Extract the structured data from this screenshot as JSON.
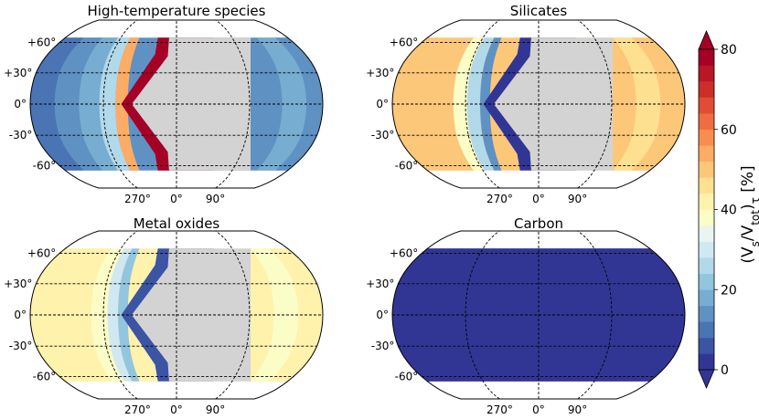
{
  "chart_data": {
    "type": "heatmap",
    "projection": "robinson",
    "colorbar": {
      "label_parts": [
        "(V",
        "s",
        "/V",
        "tot",
        ")",
        "τ",
        " [%]"
      ],
      "range": [
        0,
        80
      ],
      "ticks": [
        "0",
        "20",
        "40",
        "60",
        "80"
      ],
      "extend": "both",
      "levels": 20,
      "colors": [
        "#313695",
        "#3b54a4",
        "#4a74b4",
        "#5f91c3",
        "#77add1",
        "#92c5de",
        "#b2d9e9",
        "#d0e8f2",
        "#e9f5f0",
        "#fbfdc7",
        "#fff2ac",
        "#fee091",
        "#fdc779",
        "#fcac64",
        "#f88d51",
        "#ef6d41",
        "#e04d35",
        "#cc2f28",
        "#b71726",
        "#a50026"
      ],
      "under_color": "#313695",
      "over_color": "#a50026"
    },
    "lon_ticks": [
      "270°",
      "0°",
      "90°"
    ],
    "lat_ticks": [
      "+60°",
      "+30°",
      "0°",
      "-30°",
      "-60°"
    ],
    "lat_values": [
      60,
      30,
      0,
      -30,
      -60
    ],
    "lon_grid": [
      -90,
      0,
      90
    ],
    "panels": [
      {
        "title": "High-temperature species",
        "lon_bands": [
          {
            "from": -180,
            "to": -150,
            "value": 10
          },
          {
            "from": -150,
            "to": -120,
            "value": 12
          },
          {
            "from": -120,
            "to": -95,
            "value": 18
          },
          {
            "from": -95,
            "to": -75,
            "value": 24
          },
          {
            "from": -75,
            "to": -60,
            "value": 52
          },
          {
            "from": 130,
            "to": 160,
            "value": 18
          },
          {
            "from": 160,
            "to": 180,
            "value": 12
          }
        ],
        "nightside": {
          "edge_value": 80,
          "no_data": true
        },
        "base_value": 15
      },
      {
        "title": "Silicates",
        "lon_bands": [
          {
            "from": -180,
            "to": -105,
            "value": 48
          },
          {
            "from": -105,
            "to": -88,
            "value": 38
          },
          {
            "from": -88,
            "to": -72,
            "value": 25
          },
          {
            "from": -72,
            "to": -60,
            "value": 14
          },
          {
            "from": 120,
            "to": 150,
            "value": 44
          },
          {
            "from": 150,
            "to": 180,
            "value": 48
          }
        ],
        "nightside": {
          "edge_value": 2,
          "no_data": true
        },
        "base_value": 48
      },
      {
        "title": "Metal oxides",
        "lon_bands": [
          {
            "from": -180,
            "to": -105,
            "value": 40
          },
          {
            "from": -105,
            "to": -85,
            "value": 36
          },
          {
            "from": -85,
            "to": -72,
            "value": 30
          },
          {
            "from": -72,
            "to": -60,
            "value": 22
          },
          {
            "from": 120,
            "to": 150,
            "value": 36
          },
          {
            "from": 150,
            "to": 180,
            "value": 40
          }
        ],
        "nightside": {
          "edge_value": 6,
          "no_data": true
        },
        "base_value": 40
      },
      {
        "title": "Carbon",
        "lon_bands": [
          {
            "from": -180,
            "to": 180,
            "value": 0
          }
        ],
        "nightside": {
          "edge_value": 0,
          "no_data": false
        },
        "base_value": 0
      }
    ],
    "nodata_color": "#d3d3d3",
    "data_lat_range": [
      -65,
      65
    ]
  }
}
